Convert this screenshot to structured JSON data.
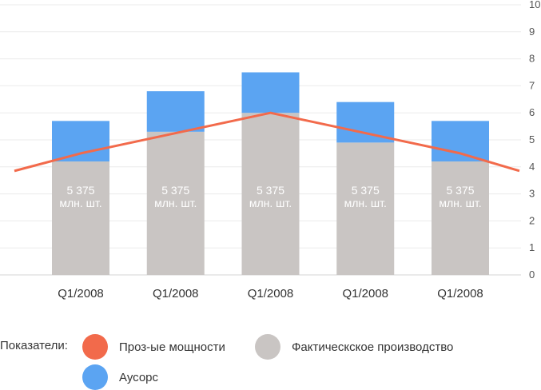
{
  "chart_data": {
    "type": "bar",
    "categories": [
      "Q1/2008",
      "Q1/2008",
      "Q1/2008",
      "Q1/2008",
      "Q1/2008"
    ],
    "series": [
      {
        "name": "Фактическское производство",
        "type": "stacked-bar",
        "color": "#c9c5c3",
        "values": [
          4.2,
          5.3,
          6.0,
          4.9,
          4.2
        ]
      },
      {
        "name": "Аусорс",
        "type": "stacked-bar",
        "color": "#5ba4f2",
        "values": [
          1.5,
          1.5,
          1.5,
          1.5,
          1.5
        ]
      },
      {
        "name": "Проз-ые мощности",
        "type": "line",
        "color": "#f26a4b",
        "values": [
          4.5,
          5.25,
          6.0,
          5.25,
          4.5
        ],
        "line_start": 3.85,
        "line_end": 3.85
      }
    ],
    "bar_labels": [
      {
        "value": "5 375",
        "unit": "млн. шт."
      },
      {
        "value": "5 375",
        "unit": "млн. шт."
      },
      {
        "value": "5 375",
        "unit": "млн. шт."
      },
      {
        "value": "5 375",
        "unit": "млн. шт."
      },
      {
        "value": "5 375",
        "unit": "млн. шт."
      }
    ],
    "y_ticks": [
      "0",
      "1",
      "2",
      "3",
      "4",
      "5",
      "6",
      "7",
      "8",
      "9",
      "10"
    ],
    "ylim": [
      0,
      10
    ],
    "y_axis_side": "right",
    "grid": true,
    "legend": {
      "title": "Показатели:",
      "placement": "bottom",
      "items": [
        {
          "label": "Проз-ые мощности",
          "color": "#f26a4b"
        },
        {
          "label": "Фактическское производство",
          "color": "#c9c5c3"
        },
        {
          "label": "Аусорс",
          "color": "#5ba4f2"
        }
      ]
    }
  }
}
